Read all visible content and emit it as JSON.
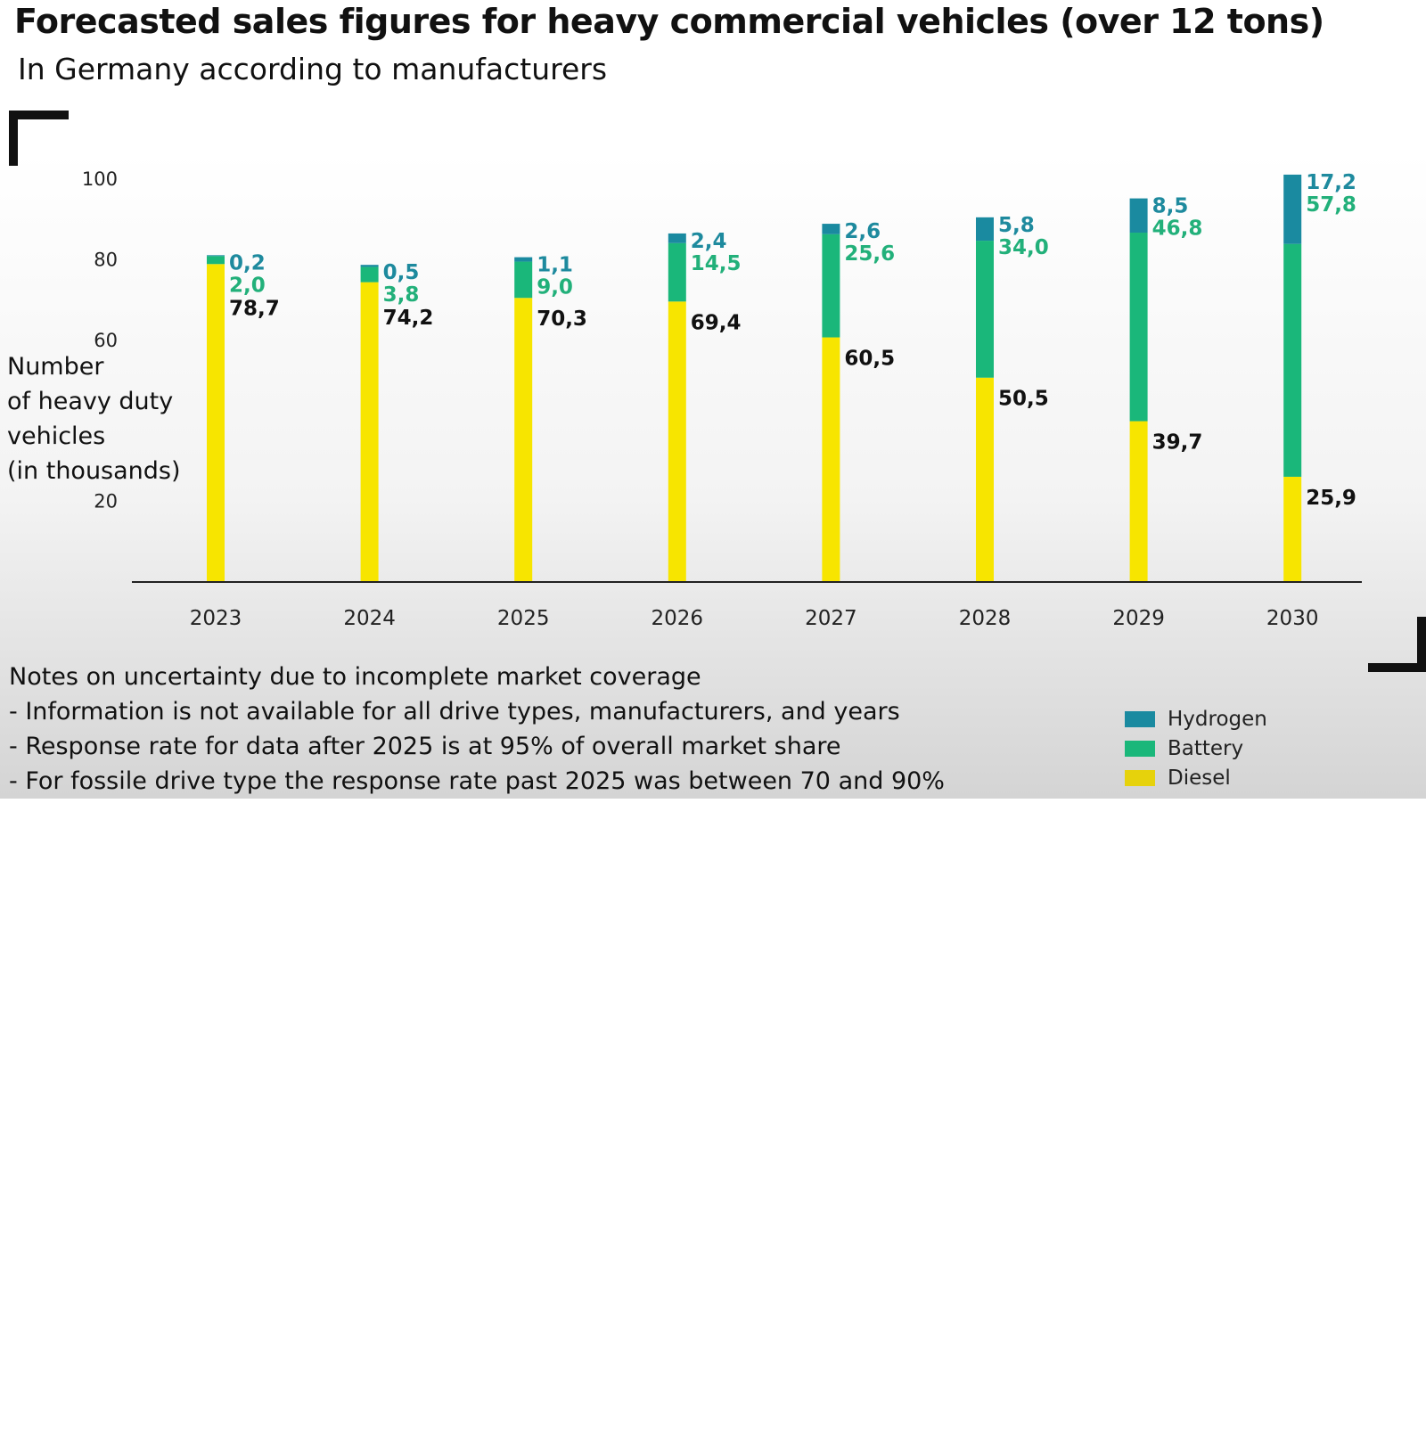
{
  "title": "Forecasted sales figures for heavy commercial vehicles (over 12 tons)",
  "subtitle": "In Germany according to manufacturers",
  "ylabel_lines": [
    "Number",
    "of heavy duty",
    "vehicles",
    "(in thousands)"
  ],
  "notes": {
    "heading": "Notes on uncertainty due to incomplete market coverage",
    "items": [
      "- Information is not available for all drive types, manufacturers, and years",
      "- Response rate for data after 2025 is at 95% of overall market share",
      "- For fossile drive type the response rate past 2025 was between 70 and 90%"
    ]
  },
  "legend": [
    {
      "name": "Hydrogen",
      "color": "#1a8aa0"
    },
    {
      "name": "Battery",
      "color": "#1ab77a"
    },
    {
      "name": "Diesel",
      "color": "#e6d20c"
    }
  ],
  "chart_data": {
    "type": "bar",
    "stacked": true,
    "categories": [
      "2023",
      "2024",
      "2025",
      "2026",
      "2027",
      "2028",
      "2029",
      "2030"
    ],
    "yticks": [
      "20",
      "60",
      "80",
      "100"
    ],
    "ylim": [
      0,
      100
    ],
    "series": [
      {
        "name": "Diesel",
        "color": "#f7e500",
        "label_color": "#111111",
        "values": [
          78.7,
          74.2,
          70.3,
          69.4,
          60.5,
          50.5,
          39.7,
          25.9
        ],
        "labels": [
          "78,7",
          "74,2",
          "70,3",
          "69,4",
          "60,5",
          "50,5",
          "39,7",
          "25,9"
        ]
      },
      {
        "name": "Battery",
        "color": "#1ab77a",
        "label_color": "#22b07a",
        "values": [
          2.0,
          3.8,
          9.0,
          14.5,
          25.6,
          34.0,
          46.8,
          57.8
        ],
        "labels": [
          "2,0",
          "3,8",
          "9,0",
          "14,5",
          "25,6",
          "34,0",
          "46,8",
          "57,8"
        ]
      },
      {
        "name": "Hydrogen",
        "color": "#1a8aa0",
        "label_color": "#1e8a9e",
        "values": [
          0.2,
          0.5,
          1.1,
          2.4,
          2.6,
          5.8,
          8.5,
          17.2
        ],
        "labels": [
          "0,2",
          "0,5",
          "1,1",
          "2,4",
          "2,6",
          "5,8",
          "8,5",
          "17,2"
        ]
      }
    ]
  }
}
